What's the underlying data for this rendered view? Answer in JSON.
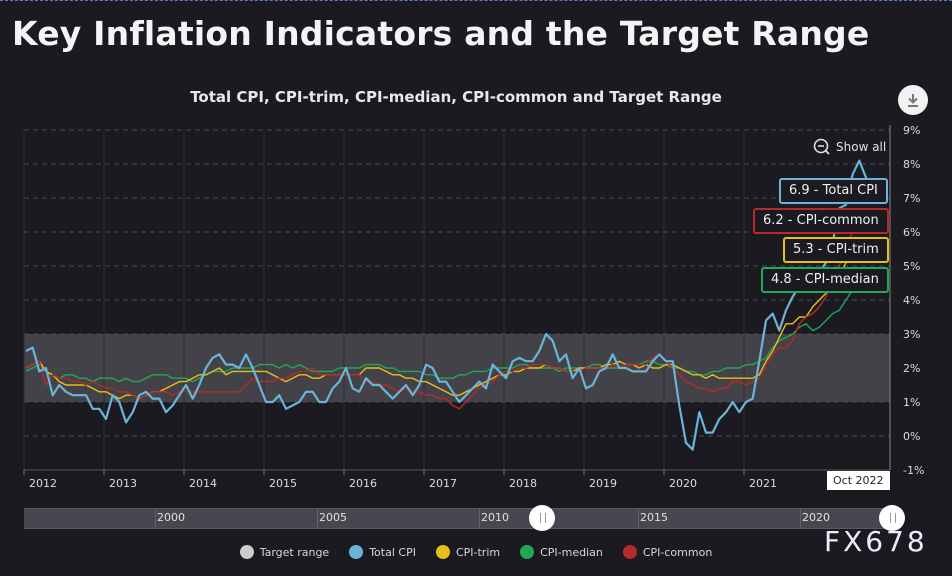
{
  "page": {
    "title": "Key Inflation Indicators and the Target Range",
    "watermark": "FX678"
  },
  "toolbar": {
    "download_icon": "download-icon",
    "show_all_label": "Show all",
    "show_all_icon": "zoom-out-icon"
  },
  "tooltips": [
    {
      "label": "6.9 - Total CPI",
      "color": "#6ab4d8"
    },
    {
      "label": "6.2 - CPI-common",
      "color": "#b52a2a"
    },
    {
      "label": "5.3 - CPI-trim",
      "color": "#e5c01a"
    },
    {
      "label": "4.8 - CPI-median",
      "color": "#1fa85a"
    }
  ],
  "crosshair_label": "Oct 2022",
  "navigator": {
    "labels": [
      "2000",
      "2005",
      "2010",
      "2015",
      "2020"
    ]
  },
  "chart_data": {
    "type": "line",
    "title": "Total CPI, CPI-trim, CPI-median, CPI-common and Target Range",
    "xlabel": "",
    "ylabel": "",
    "x_start": "2012-01",
    "x_end": "2022-10",
    "x_ticks": [
      "2012",
      "2013",
      "2014",
      "2015",
      "2016",
      "2017",
      "2018",
      "2019",
      "2020",
      "2021"
    ],
    "y_ticks": [
      "-1%",
      "0%",
      "1%",
      "2%",
      "3%",
      "4%",
      "5%",
      "6%",
      "7%",
      "8%",
      "9%"
    ],
    "ylim": [
      -1,
      9
    ],
    "grid": true,
    "legend_position": "bottom",
    "target_range": {
      "name": "Target range",
      "low": 1,
      "high": 3,
      "color": "#cccccc"
    },
    "series": [
      {
        "name": "Total CPI",
        "color": "#6ab4d8",
        "values": [
          2.5,
          2.6,
          1.9,
          2.0,
          1.2,
          1.5,
          1.3,
          1.2,
          1.2,
          1.2,
          0.8,
          0.8,
          0.5,
          1.2,
          1.0,
          0.4,
          0.7,
          1.2,
          1.3,
          1.1,
          1.1,
          0.7,
          0.9,
          1.2,
          1.5,
          1.1,
          1.5,
          2.0,
          2.3,
          2.4,
          2.1,
          2.1,
          2.0,
          2.4,
          2.0,
          1.5,
          1.0,
          1.0,
          1.2,
          0.8,
          0.9,
          1.0,
          1.3,
          1.3,
          1.0,
          1.0,
          1.4,
          1.6,
          2.0,
          1.4,
          1.3,
          1.7,
          1.5,
          1.5,
          1.3,
          1.1,
          1.3,
          1.5,
          1.2,
          1.5,
          2.1,
          2.0,
          1.6,
          1.6,
          1.3,
          1.0,
          1.2,
          1.4,
          1.6,
          1.4,
          2.1,
          1.9,
          1.7,
          2.2,
          2.3,
          2.2,
          2.2,
          2.5,
          3.0,
          2.8,
          2.2,
          2.4,
          1.7,
          2.0,
          1.4,
          1.5,
          1.9,
          2.0,
          2.4,
          2.0,
          2.0,
          1.9,
          1.9,
          1.9,
          2.2,
          2.4,
          2.2,
          2.2,
          0.9,
          -0.2,
          -0.4,
          0.7,
          0.1,
          0.1,
          0.5,
          0.7,
          1.0,
          0.7,
          1.0,
          1.1,
          2.2,
          3.4,
          3.6,
          3.1,
          3.7,
          4.1,
          4.4,
          4.7,
          4.7,
          4.8,
          5.1,
          5.7,
          6.7,
          6.8,
          7.7,
          8.1,
          7.6,
          7.0,
          6.9,
          6.9
        ],
        "last_value": 6.9
      },
      {
        "name": "CPI-trim",
        "color": "#e5c01a",
        "values": [
          2.0,
          2.1,
          2.2,
          1.9,
          1.8,
          1.6,
          1.5,
          1.5,
          1.5,
          1.5,
          1.4,
          1.3,
          1.3,
          1.2,
          1.1,
          1.2,
          1.2,
          1.1,
          1.2,
          1.3,
          1.3,
          1.4,
          1.5,
          1.6,
          1.6,
          1.7,
          1.8,
          1.8,
          1.9,
          2.0,
          1.8,
          1.9,
          1.9,
          1.9,
          1.9,
          1.9,
          1.9,
          1.8,
          1.7,
          1.6,
          1.7,
          1.8,
          1.8,
          1.7,
          1.7,
          1.8,
          1.8,
          1.8,
          1.8,
          1.8,
          1.8,
          2.0,
          2.0,
          2.0,
          1.9,
          1.8,
          1.8,
          1.7,
          1.7,
          1.6,
          1.6,
          1.5,
          1.4,
          1.3,
          1.2,
          1.2,
          1.3,
          1.4,
          1.5,
          1.6,
          1.7,
          1.8,
          1.8,
          1.9,
          1.9,
          2.0,
          2.0,
          2.0,
          2.1,
          2.0,
          2.0,
          1.9,
          1.9,
          2.0,
          2.0,
          2.0,
          2.0,
          2.1,
          2.1,
          2.2,
          2.1,
          2.1,
          2.0,
          2.1,
          2.0,
          2.0,
          2.1,
          2.1,
          2.0,
          1.9,
          1.8,
          1.8,
          1.7,
          1.8,
          1.7,
          1.7,
          1.7,
          1.7,
          1.7,
          1.7,
          1.8,
          2.2,
          2.5,
          2.9,
          3.3,
          3.3,
          3.5,
          3.5,
          3.8,
          4.0,
          4.2,
          4.4,
          4.7,
          5.1,
          5.4,
          5.5,
          5.4,
          5.5,
          5.3,
          5.3
        ],
        "last_value": 5.3
      },
      {
        "name": "CPI-median",
        "color": "#1fa85a",
        "values": [
          1.9,
          2.0,
          2.1,
          1.9,
          1.8,
          1.7,
          1.8,
          1.8,
          1.7,
          1.7,
          1.6,
          1.7,
          1.7,
          1.7,
          1.6,
          1.7,
          1.6,
          1.6,
          1.7,
          1.8,
          1.8,
          1.8,
          1.7,
          1.7,
          1.7,
          1.6,
          1.7,
          1.8,
          1.9,
          1.9,
          1.9,
          2.0,
          2.0,
          2.0,
          2.0,
          2.1,
          2.1,
          2.1,
          2.0,
          2.1,
          2.0,
          2.1,
          2.0,
          1.9,
          1.9,
          1.9,
          1.9,
          2.0,
          2.0,
          2.0,
          2.0,
          2.1,
          2.1,
          2.1,
          2.0,
          2.0,
          1.9,
          1.9,
          1.9,
          1.9,
          1.8,
          1.8,
          1.7,
          1.7,
          1.7,
          1.8,
          1.8,
          1.9,
          1.9,
          1.9,
          2.0,
          2.0,
          2.0,
          2.0,
          2.1,
          2.1,
          2.0,
          2.0,
          2.0,
          2.0,
          1.9,
          2.0,
          2.0,
          2.0,
          2.0,
          2.1,
          2.1,
          2.0,
          2.0,
          2.0,
          2.1,
          2.1,
          2.1,
          2.2,
          2.2,
          2.1,
          2.1,
          2.0,
          2.0,
          1.9,
          1.9,
          1.8,
          1.8,
          1.9,
          1.9,
          2.0,
          2.0,
          2.0,
          2.1,
          2.1,
          2.2,
          2.3,
          2.6,
          2.8,
          2.9,
          3.0,
          3.2,
          3.3,
          3.1,
          3.2,
          3.4,
          3.6,
          3.7,
          4.0,
          4.3,
          4.6,
          4.7,
          4.8,
          4.8,
          4.8
        ],
        "last_value": 4.8
      },
      {
        "name": "CPI-common",
        "color": "#b52a2a",
        "values": [
          2.0,
          2.1,
          2.2,
          1.5,
          1.8,
          1.7,
          1.7,
          1.6,
          1.6,
          1.5,
          1.6,
          1.5,
          1.4,
          1.4,
          1.3,
          1.3,
          1.2,
          1.1,
          1.2,
          1.3,
          1.3,
          1.3,
          1.2,
          1.3,
          1.3,
          1.3,
          1.3,
          1.3,
          1.3,
          1.3,
          1.3,
          1.3,
          1.3,
          1.5,
          1.7,
          1.6,
          1.6,
          1.6,
          1.7,
          1.7,
          1.8,
          1.9,
          1.9,
          2.0,
          1.8,
          1.8,
          1.8,
          1.8,
          1.8,
          1.8,
          1.8,
          1.6,
          1.6,
          1.5,
          1.5,
          1.4,
          1.3,
          1.4,
          1.3,
          1.3,
          1.2,
          1.2,
          1.1,
          1.1,
          0.9,
          0.8,
          1.0,
          1.2,
          1.4,
          1.5,
          1.6,
          1.8,
          1.9,
          1.9,
          2.0,
          2.0,
          2.1,
          2.1,
          2.1,
          2.0,
          2.0,
          1.9,
          1.9,
          1.9,
          2.0,
          2.0,
          2.0,
          2.0,
          2.1,
          2.0,
          2.1,
          2.1,
          2.1,
          2.1,
          2.3,
          2.4,
          2.2,
          2.0,
          1.8,
          1.6,
          1.5,
          1.4,
          1.4,
          1.3,
          1.4,
          1.4,
          1.6,
          1.6,
          1.5,
          1.6,
          1.7,
          2.1,
          2.4,
          2.6,
          2.6,
          2.8,
          3.3,
          3.5,
          3.6,
          3.8,
          4.1,
          4.5,
          5.0,
          5.6,
          6.0,
          6.3,
          6.2,
          6.1,
          6.2,
          6.2
        ],
        "last_value": 6.2
      }
    ]
  }
}
